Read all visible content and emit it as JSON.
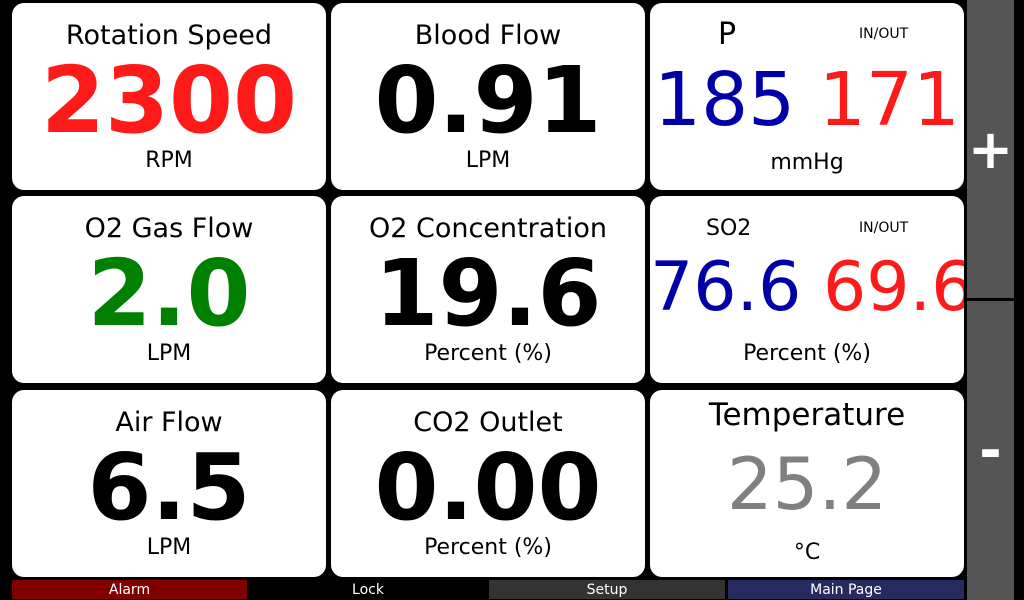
{
  "tiles": {
    "rotation": {
      "label": "Rotation Speed",
      "value": "2300",
      "unit": "RPM",
      "color": "#ff1a1a"
    },
    "blood_flow": {
      "label": "Blood Flow",
      "value": "0.91",
      "unit": "LPM",
      "color": "#000000"
    },
    "pressure": {
      "label": "P",
      "tag": "IN/OUT",
      "in_value": "185",
      "out_value": "171",
      "unit": "mmHg",
      "in_color": "#0000a8",
      "out_color": "#ff1a1a"
    },
    "o2_gas_flow": {
      "label": "O2 Gas Flow",
      "value": "2.0",
      "unit": "LPM",
      "color": "#008000"
    },
    "o2_concentration": {
      "label": "O2 Concentration",
      "value": "19.6",
      "unit": "Percent (%)",
      "color": "#000000"
    },
    "so2": {
      "label": "SO2",
      "tag": "IN/OUT",
      "in_value": "76.6",
      "out_value": "69.6",
      "unit": "Percent (%)",
      "in_color": "#0000a8",
      "out_color": "#ff1a1a"
    },
    "air_flow": {
      "label": "Air Flow",
      "value": "6.5",
      "unit": "LPM",
      "color": "#000000"
    },
    "co2_outlet": {
      "label": "CO2 Outlet",
      "value": "0.00",
      "unit": "Percent (%)",
      "color": "#000000"
    },
    "temperature": {
      "label": "Temperature",
      "value": "25.2",
      "unit": "°C",
      "color": "#808080"
    }
  },
  "side": {
    "plus_label": "+",
    "minus_label": "-"
  },
  "bottom": {
    "alarm_label": "Alarm",
    "lock_label": "Lock",
    "setup_label": "Setup",
    "main_label": "Main Page",
    "alarm_color": "#800000",
    "lock_color": "#000000",
    "setup_color": "#333333",
    "main_color": "#262a5e"
  }
}
